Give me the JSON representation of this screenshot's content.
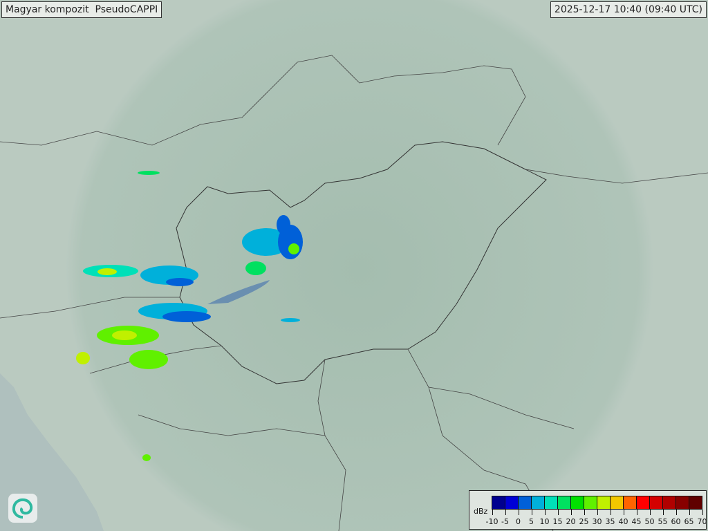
{
  "header": {
    "title": "Magyar kompozit  PseudoCAPPI",
    "timestamp": "2025-12-17 10:40 (09:40 UTC)"
  },
  "legend": {
    "unit": "dBz",
    "ticks": [
      "-10",
      "-5",
      "0",
      "5",
      "10",
      "15",
      "20",
      "25",
      "30",
      "35",
      "40",
      "45",
      "50",
      "55",
      "60",
      "65",
      "70"
    ],
    "colors": [
      "#00008f",
      "#0000d6",
      "#0060d8",
      "#00b0da",
      "#00e0b8",
      "#00e060",
      "#00e000",
      "#60f000",
      "#c0f000",
      "#f2c800",
      "#ff6400",
      "#ff0000",
      "#d40000",
      "#b00000",
      "#880000",
      "#600000"
    ]
  },
  "logo": {
    "icon": "spiral-logo-icon"
  },
  "map": {
    "radar_coverage": "light-circle",
    "echo_colors": [
      "#00e0b8",
      "#00e060",
      "#0060d8",
      "#c0f000"
    ]
  }
}
